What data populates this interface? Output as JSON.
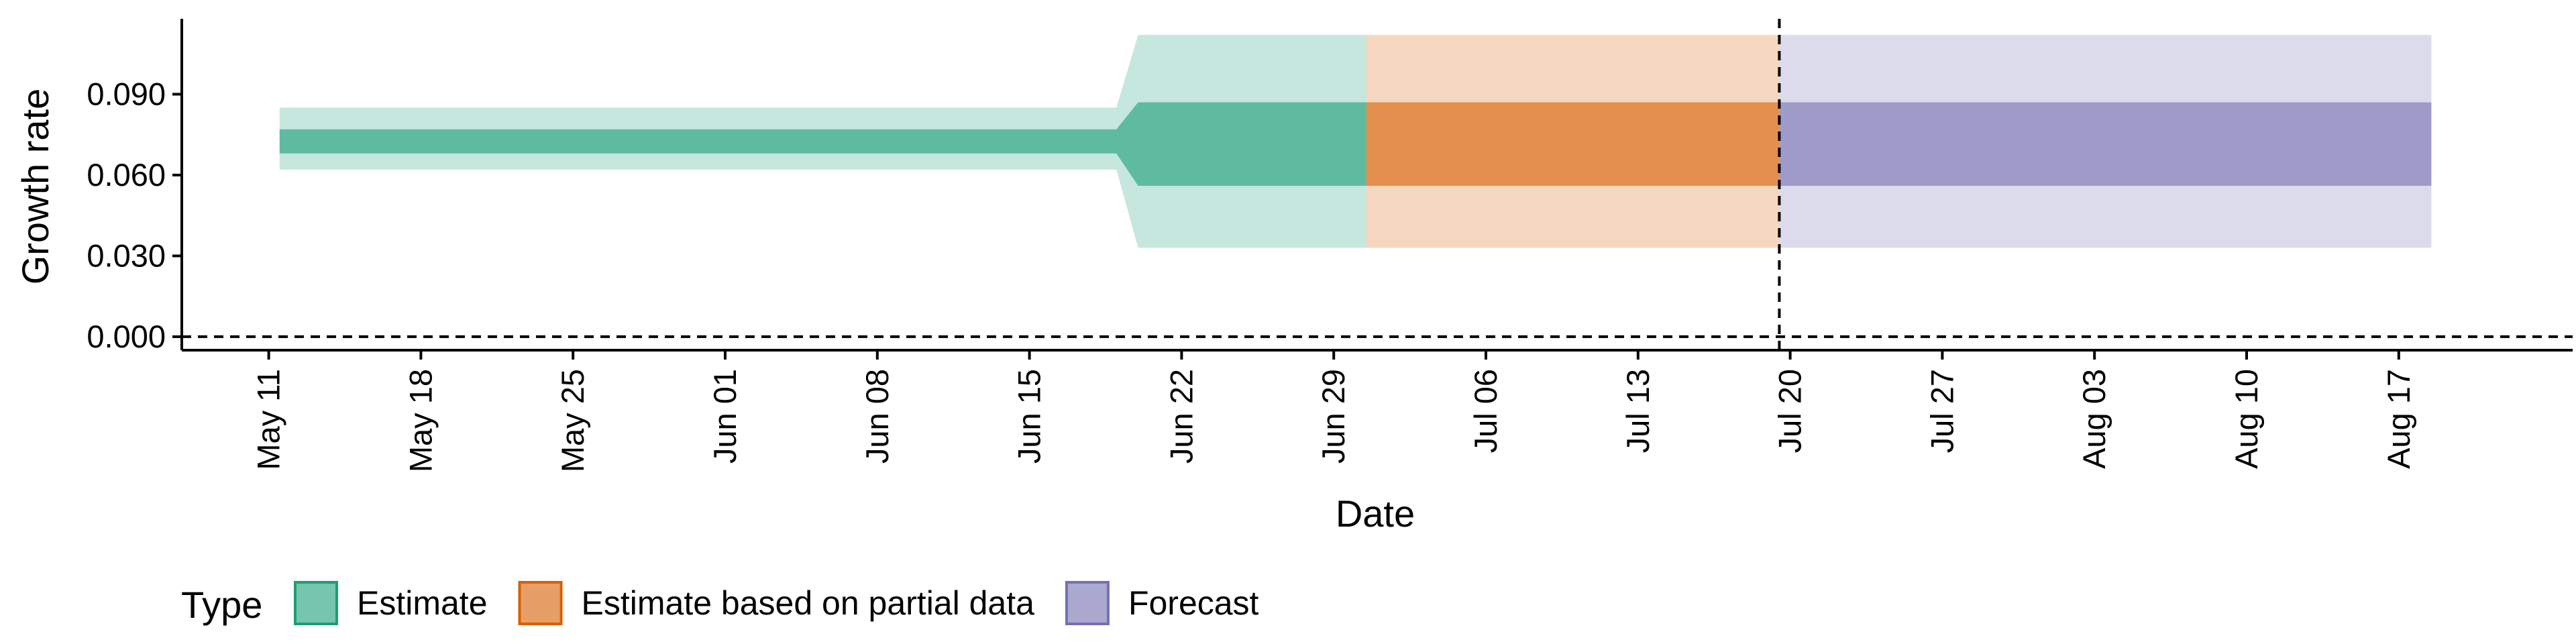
{
  "chart_data": {
    "type": "area",
    "xlabel": "Date",
    "ylabel": "Growth rate",
    "ylim": [
      -0.005,
      0.118
    ],
    "xlim": [
      "2020-05-07",
      "2020-08-25"
    ],
    "y_ticks": [
      {
        "value": 0.0,
        "label": "0.000"
      },
      {
        "value": 0.03,
        "label": "0.030"
      },
      {
        "value": 0.06,
        "label": "0.060"
      },
      {
        "value": 0.09,
        "label": "0.090"
      }
    ],
    "x_ticks": [
      {
        "date": "2020-05-11",
        "label": "May 11"
      },
      {
        "date": "2020-05-18",
        "label": "May 18"
      },
      {
        "date": "2020-05-25",
        "label": "May 25"
      },
      {
        "date": "2020-06-01",
        "label": "Jun 01"
      },
      {
        "date": "2020-06-08",
        "label": "Jun 08"
      },
      {
        "date": "2020-06-15",
        "label": "Jun 15"
      },
      {
        "date": "2020-06-22",
        "label": "Jun 22"
      },
      {
        "date": "2020-06-29",
        "label": "Jun 29"
      },
      {
        "date": "2020-07-06",
        "label": "Jul 06"
      },
      {
        "date": "2020-07-13",
        "label": "Jul 13"
      },
      {
        "date": "2020-07-20",
        "label": "Jul 20"
      },
      {
        "date": "2020-07-27",
        "label": "Jul 27"
      },
      {
        "date": "2020-08-03",
        "label": "Aug 03"
      },
      {
        "date": "2020-08-10",
        "label": "Aug 10"
      },
      {
        "date": "2020-08-17",
        "label": "Aug 17"
      }
    ],
    "reference_lines": [
      {
        "axis": "y",
        "value": 0.0,
        "style": "dashed"
      },
      {
        "axis": "x",
        "date": "2020-07-19",
        "style": "dashed"
      }
    ],
    "legend": {
      "title": "Type",
      "position": "bottom"
    },
    "series": [
      {
        "name": "Estimate",
        "color": "#1b9e77",
        "points": [
          {
            "date": "2020-05-12",
            "outer_low": 0.062,
            "outer_high": 0.085,
            "inner_low": 0.068,
            "inner_high": 0.077
          },
          {
            "date": "2020-06-19",
            "outer_low": 0.062,
            "outer_high": 0.085,
            "inner_low": 0.068,
            "inner_high": 0.077
          },
          {
            "date": "2020-06-20",
            "outer_low": 0.033,
            "outer_high": 0.112,
            "inner_low": 0.056,
            "inner_high": 0.087
          },
          {
            "date": "2020-06-30",
            "outer_low": 0.033,
            "outer_high": 0.112,
            "inner_low": 0.056,
            "inner_high": 0.087
          }
        ]
      },
      {
        "name": "Estimate based on partial data",
        "color": "#d95f02",
        "points": [
          {
            "date": "2020-07-01",
            "outer_low": 0.033,
            "outer_high": 0.112,
            "inner_low": 0.056,
            "inner_high": 0.087
          },
          {
            "date": "2020-07-19",
            "outer_low": 0.033,
            "outer_high": 0.112,
            "inner_low": 0.056,
            "inner_high": 0.087
          }
        ]
      },
      {
        "name": "Forecast",
        "color": "#7570b3",
        "points": [
          {
            "date": "2020-07-20",
            "outer_low": 0.033,
            "outer_high": 0.112,
            "inner_low": 0.056,
            "inner_high": 0.087
          },
          {
            "date": "2020-08-18",
            "outer_low": 0.033,
            "outer_high": 0.112,
            "inner_low": 0.056,
            "inner_high": 0.087
          }
        ]
      }
    ]
  }
}
